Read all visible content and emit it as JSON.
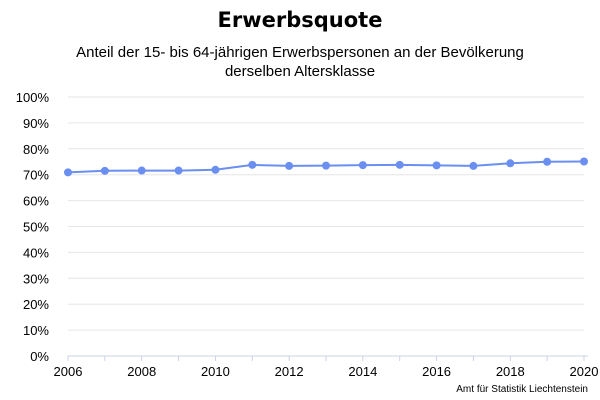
{
  "header": {
    "title": "Erwerbsquote",
    "subtitle_line1": "Anteil der 15- bis 64-jährigen Erwerbspersonen an der Bevölkerung",
    "subtitle_line2": "derselben Altersklasse"
  },
  "footer": {
    "credit": "Amt für Statistik Liechtenstein"
  },
  "colors": {
    "series": "#6a8ff0",
    "grid": "#e6e6e6",
    "axis": "#c8d3e6"
  },
  "chart_data": {
    "type": "line",
    "title": "Erwerbsquote",
    "subtitle": "Anteil der 15- bis 64-jährigen Erwerbspersonen an der Bevölkerung derselben Altersklasse",
    "xlabel": "",
    "ylabel": "",
    "x": [
      2006,
      2007,
      2008,
      2009,
      2010,
      2011,
      2012,
      2013,
      2014,
      2015,
      2016,
      2017,
      2018,
      2019,
      2020
    ],
    "series": [
      {
        "values": [
          70.9,
          71.5,
          71.6,
          71.6,
          71.9,
          73.8,
          73.4,
          73.5,
          73.7,
          73.8,
          73.6,
          73.4,
          74.4,
          75.0,
          75.1
        ]
      }
    ],
    "xticks": [
      "2006",
      "2008",
      "2010",
      "2012",
      "2014",
      "2016",
      "2018",
      "2020"
    ],
    "yticks": [
      "0%",
      "10%",
      "20%",
      "30%",
      "40%",
      "50%",
      "60%",
      "70%",
      "80%",
      "90%",
      "100%"
    ],
    "ylim": [
      0,
      100
    ],
    "xlim": [
      2006,
      2020
    ],
    "grid": "horizontal",
    "legend": "none"
  }
}
